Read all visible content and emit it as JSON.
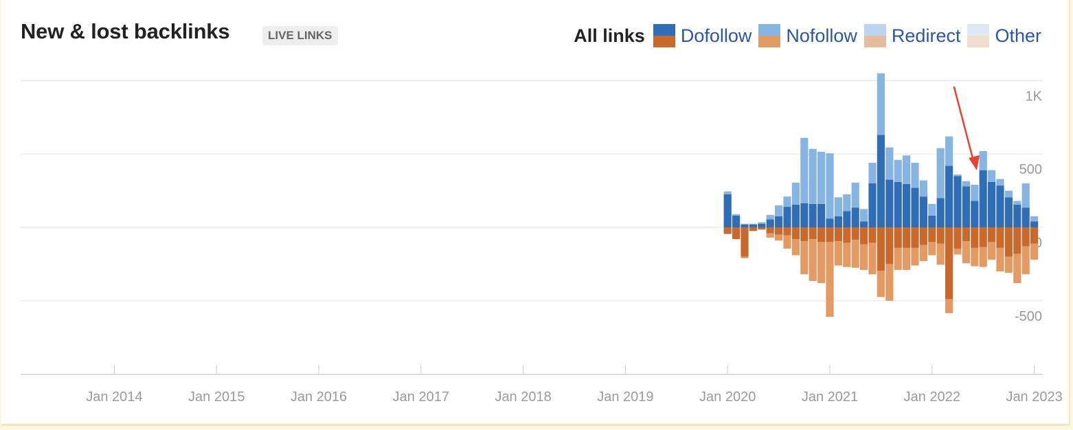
{
  "header": {
    "title": "New & lost backlinks",
    "badge": "LIVE LINKS"
  },
  "legend": {
    "all_label": "All links",
    "items": [
      {
        "label": "Dofollow",
        "top_color": "#2f6db7",
        "bottom_color": "#c9692c"
      },
      {
        "label": "Nofollow",
        "top_color": "#86b4e3",
        "bottom_color": "#e39a63"
      },
      {
        "label": "Redirect",
        "top_color": "#bcd4ee",
        "bottom_color": "#e3bd9d"
      },
      {
        "label": "Other",
        "top_color": "#dde8f4",
        "bottom_color": "#f0ddcd"
      }
    ]
  },
  "colors": {
    "new_dofollow": "#2f6db7",
    "new_nofollow": "#86b4e3",
    "lost_dofollow": "#c9692c",
    "lost_nofollow": "#e39a63",
    "grid": "#e6e6e6",
    "annotation_arrow": "#e8412f"
  },
  "chart_data": {
    "type": "bar",
    "stacked": true,
    "diverging": true,
    "ylim": [
      -1000,
      1000
    ],
    "y_ticks": [
      {
        "value": 1000,
        "label": "1K"
      },
      {
        "value": 500,
        "label": "500"
      },
      {
        "value": 0,
        "label": "0"
      },
      {
        "value": -500,
        "label": "-500"
      }
    ],
    "x_range": [
      "2013-02",
      "2023-02"
    ],
    "x_ticks": [
      {
        "date": "2014-01",
        "label": "Jan 2014"
      },
      {
        "date": "2015-01",
        "label": "Jan 2015"
      },
      {
        "date": "2016-01",
        "label": "Jan 2016"
      },
      {
        "date": "2017-01",
        "label": "Jan 2017"
      },
      {
        "date": "2018-01",
        "label": "Jan 2018"
      },
      {
        "date": "2019-01",
        "label": "Jan 2019"
      },
      {
        "date": "2020-01",
        "label": "Jan 2020"
      },
      {
        "date": "2021-01",
        "label": "Jan 2021"
      },
      {
        "date": "2022-01",
        "label": "Jan 2022"
      },
      {
        "date": "2023-01",
        "label": "Jan 2023"
      }
    ],
    "months": [
      "2020-01",
      "2020-02",
      "2020-03",
      "2020-04",
      "2020-05",
      "2020-06",
      "2020-07",
      "2020-08",
      "2020-09",
      "2020-10",
      "2020-11",
      "2020-12",
      "2021-01",
      "2021-02",
      "2021-03",
      "2021-04",
      "2021-05",
      "2021-06",
      "2021-07",
      "2021-08",
      "2021-09",
      "2021-10",
      "2021-11",
      "2021-12",
      "2022-01",
      "2022-02",
      "2022-03",
      "2022-04",
      "2022-05",
      "2022-06",
      "2022-07",
      "2022-08",
      "2022-09",
      "2022-10",
      "2022-11",
      "2022-12",
      "2023-01"
    ],
    "series": [
      {
        "name": "Dofollow",
        "type": "new",
        "values": [
          225,
          80,
          20,
          20,
          25,
          55,
          75,
          140,
          155,
          165,
          160,
          160,
          60,
          75,
          110,
          135,
          40,
          300,
          630,
          325,
          310,
          295,
          270,
          210,
          80,
          200,
          420,
          350,
          280,
          180,
          390,
          310,
          285,
          205,
          155,
          135,
          40
        ]
      },
      {
        "name": "Nofollow",
        "type": "new",
        "values": [
          20,
          10,
          5,
          5,
          10,
          30,
          75,
          70,
          150,
          445,
          375,
          355,
          445,
          130,
          115,
          170,
          85,
          140,
          420,
          220,
          150,
          195,
          170,
          110,
          80,
          340,
          200,
          10,
          35,
          110,
          130,
          80,
          45,
          45,
          25,
          165,
          35
        ]
      },
      {
        "name": "Dofollow",
        "type": "lost",
        "values": [
          -45,
          -80,
          -200,
          -25,
          -15,
          -40,
          -50,
          -55,
          -80,
          -95,
          -80,
          -100,
          -100,
          -95,
          -105,
          -85,
          -115,
          -105,
          -295,
          -250,
          -140,
          -140,
          -140,
          -120,
          -100,
          -110,
          -490,
          -145,
          -95,
          -140,
          -135,
          -100,
          -140,
          -200,
          -180,
          -130,
          -110
        ]
      },
      {
        "name": "Nofollow",
        "type": "lost",
        "values": [
          0,
          0,
          -10,
          0,
          0,
          -30,
          -40,
          -90,
          -110,
          -225,
          -285,
          -280,
          -510,
          -165,
          -165,
          -190,
          -175,
          -215,
          -180,
          -250,
          -150,
          -150,
          -120,
          -110,
          -90,
          -145,
          -95,
          -40,
          -150,
          -125,
          -135,
          -120,
          -160,
          -110,
          -200,
          -190,
          -110
        ]
      }
    ]
  }
}
